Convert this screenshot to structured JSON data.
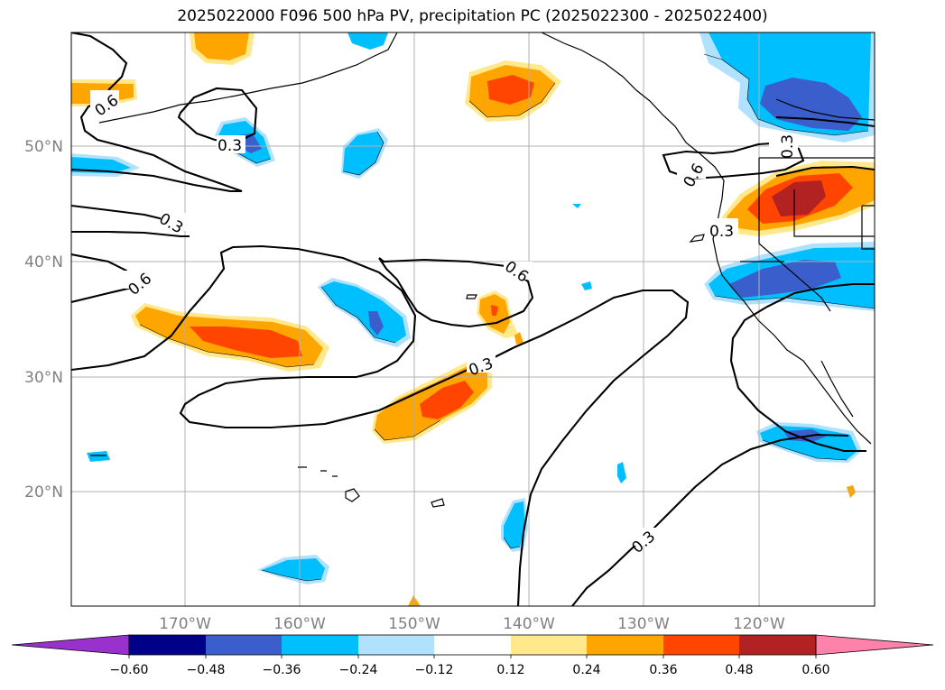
{
  "title": "2025022000 F096 500 hPa PV, precipitation PC (2025022300 - 2025022400)",
  "map": {
    "lat_labels": [
      "50°N",
      "40°N",
      "30°N",
      "20°N"
    ],
    "lon_labels": [
      "170°W",
      "160°W",
      "150°W",
      "140°W",
      "130°W",
      "120°W"
    ],
    "contour_labels": [
      "0.6",
      "0.3",
      "0.3",
      "0.6",
      "0.6",
      "0.3",
      "0.3",
      "0.6",
      "0.3",
      "0.3"
    ]
  },
  "colorbar": {
    "colors": {
      "purple": "#9932CC",
      "navy": "#00008B",
      "royal_blue": "#3A5FCD",
      "deep_sky_blue": "#00BFFF",
      "light_sky_blue": "#B0E2FF",
      "white": "#FFFFFF",
      "khaki": "#FFE98C",
      "orange": "#FFA500",
      "orange_red": "#FF4500",
      "firebrick": "#B22222",
      "pink": "#FF82AB"
    },
    "tick_labels": [
      "−0.60",
      "−0.48",
      "−0.36",
      "−0.24",
      "−0.12",
      "0.12",
      "0.24",
      "0.36",
      "0.48",
      "0.60"
    ]
  }
}
